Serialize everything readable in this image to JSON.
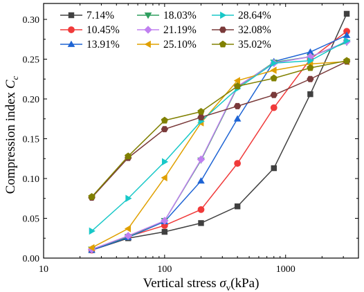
{
  "chart_data": {
    "type": "line",
    "x_scale": "log",
    "xlabel": {
      "base": "Vertical stress ",
      "symbol": "σ",
      "sub": "v",
      "unit": "(kPa)"
    },
    "ylabel": {
      "base": "Compression index ",
      "symbol": "C",
      "sub": "c"
    },
    "xlim": [
      10,
      4000
    ],
    "ylim": [
      0,
      0.32
    ],
    "x_ticks": [
      10,
      100,
      1000
    ],
    "x_tick_labels": [
      "10",
      "100",
      "1000"
    ],
    "y_ticks": [
      0.0,
      0.05,
      0.1,
      0.15,
      0.2,
      0.25,
      0.3
    ],
    "y_tick_labels": [
      "0.00",
      "0.05",
      "0.10",
      "0.15",
      "0.20",
      "0.25",
      "0.30"
    ],
    "grid": false,
    "legend_position": "top-left",
    "legend_columns": 3,
    "x": [
      25,
      50,
      100,
      200,
      400,
      800,
      1600,
      3200
    ],
    "series": [
      {
        "name": "7.14%",
        "color": "#404040",
        "marker": "square",
        "values": [
          0.01,
          0.025,
          0.033,
          0.044,
          0.065,
          0.113,
          0.206,
          0.307
        ]
      },
      {
        "name": "10.45%",
        "color": "#f03a3a",
        "marker": "circle",
        "values": [
          0.01,
          0.027,
          0.041,
          0.061,
          0.119,
          0.189,
          0.25,
          0.285
        ]
      },
      {
        "name": "13.91%",
        "color": "#1e64d4",
        "marker": "triangle-up",
        "values": [
          0.01,
          0.026,
          0.046,
          0.097,
          0.175,
          0.247,
          0.259,
          0.28
        ]
      },
      {
        "name": "18.03%",
        "color": "#2e9e5e",
        "marker": "triangle-down",
        "values": [
          0.011,
          0.027,
          0.047,
          0.123,
          0.215,
          0.246,
          0.253,
          0.271
        ]
      },
      {
        "name": "21.19%",
        "color": "#c080f0",
        "marker": "diamond",
        "values": [
          0.011,
          0.028,
          0.047,
          0.124,
          0.216,
          0.245,
          0.253,
          0.272
        ]
      },
      {
        "name": "25.10%",
        "color": "#e0a000",
        "marker": "triangle-left",
        "values": [
          0.013,
          0.037,
          0.101,
          0.17,
          0.223,
          0.236,
          0.244,
          0.247
        ]
      },
      {
        "name": "28.64%",
        "color": "#18c8c8",
        "marker": "triangle-right",
        "values": [
          0.034,
          0.075,
          0.121,
          0.172,
          0.213,
          0.245,
          0.248,
          0.273
        ]
      },
      {
        "name": "32.08%",
        "color": "#7a3a3a",
        "marker": "hexagon",
        "values": [
          0.076,
          0.126,
          0.162,
          0.177,
          0.191,
          0.205,
          0.225,
          0.247
        ]
      },
      {
        "name": "35.02%",
        "color": "#808000",
        "marker": "pentagon",
        "values": [
          0.077,
          0.128,
          0.173,
          0.184,
          0.216,
          0.226,
          0.239,
          0.248
        ]
      }
    ]
  }
}
